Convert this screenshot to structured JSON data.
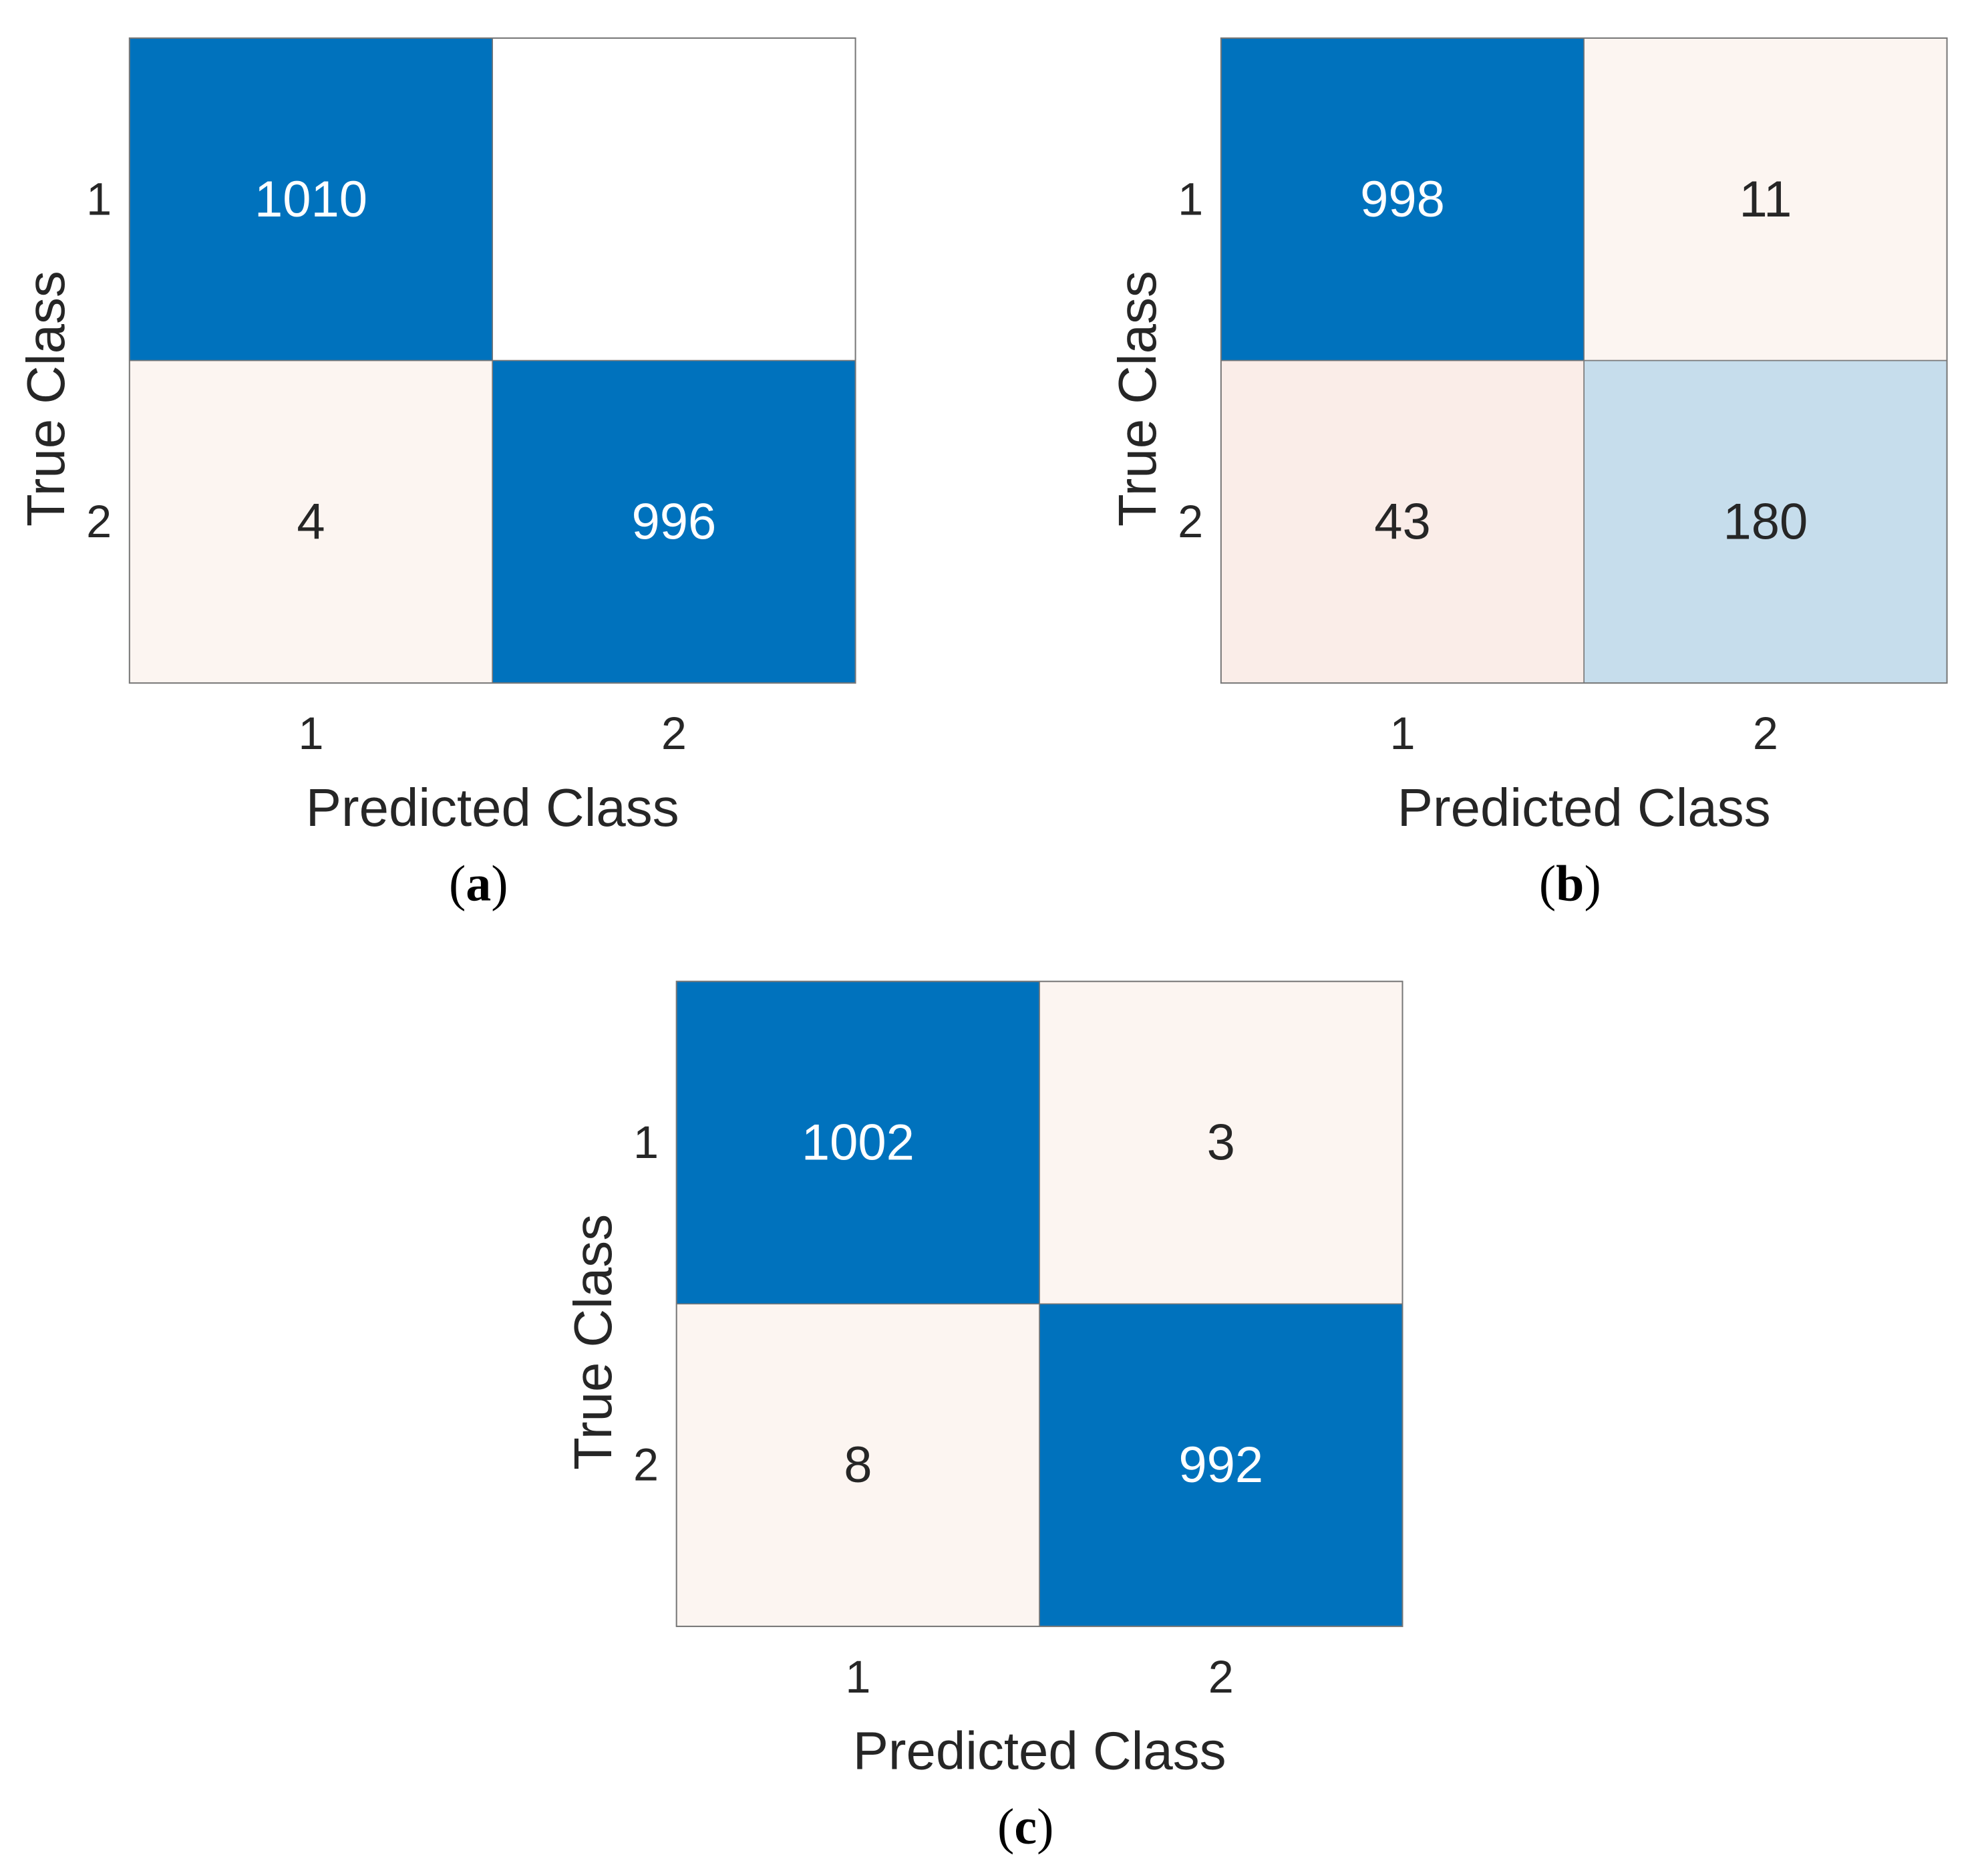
{
  "figure": {
    "panels": [
      "(a)",
      "(b)",
      "(c)"
    ]
  },
  "colors": {
    "strong_blue": "#0072BD",
    "light_blue": "#C6DDEC",
    "pale_peach": "#FCF5F1",
    "pale_peach_alt": "#FAEDE8",
    "empty": "#FFFFFF",
    "border": "#777777",
    "text_dark": "#262626",
    "text_light": "#FFFFFF"
  },
  "chart_data": [
    {
      "type": "heatmap",
      "panel_label": "(a)",
      "xlabel": "Predicted Class",
      "ylabel": "True Class",
      "x_categories": [
        "1",
        "2"
      ],
      "y_categories": [
        "1",
        "2"
      ],
      "values": [
        [
          1010,
          null
        ],
        [
          4,
          996
        ]
      ],
      "cell_labels": [
        [
          "1010",
          ""
        ],
        [
          "4",
          "996"
        ]
      ],
      "grid": false
    },
    {
      "type": "heatmap",
      "panel_label": "(b)",
      "xlabel": "Predicted Class",
      "ylabel": "True Class",
      "x_categories": [
        "1",
        "2"
      ],
      "y_categories": [
        "1",
        "2"
      ],
      "values": [
        [
          998,
          11
        ],
        [
          43,
          180
        ]
      ],
      "cell_labels": [
        [
          "998",
          "11"
        ],
        [
          "43",
          "180"
        ]
      ],
      "grid": false
    },
    {
      "type": "heatmap",
      "panel_label": "(c)",
      "xlabel": "Predicted Class",
      "ylabel": "True Class",
      "x_categories": [
        "1",
        "2"
      ],
      "y_categories": [
        "1",
        "2"
      ],
      "values": [
        [
          1002,
          3
        ],
        [
          8,
          992
        ]
      ],
      "cell_labels": [
        [
          "1002",
          "3"
        ],
        [
          "8",
          "992"
        ]
      ],
      "grid": false
    }
  ]
}
